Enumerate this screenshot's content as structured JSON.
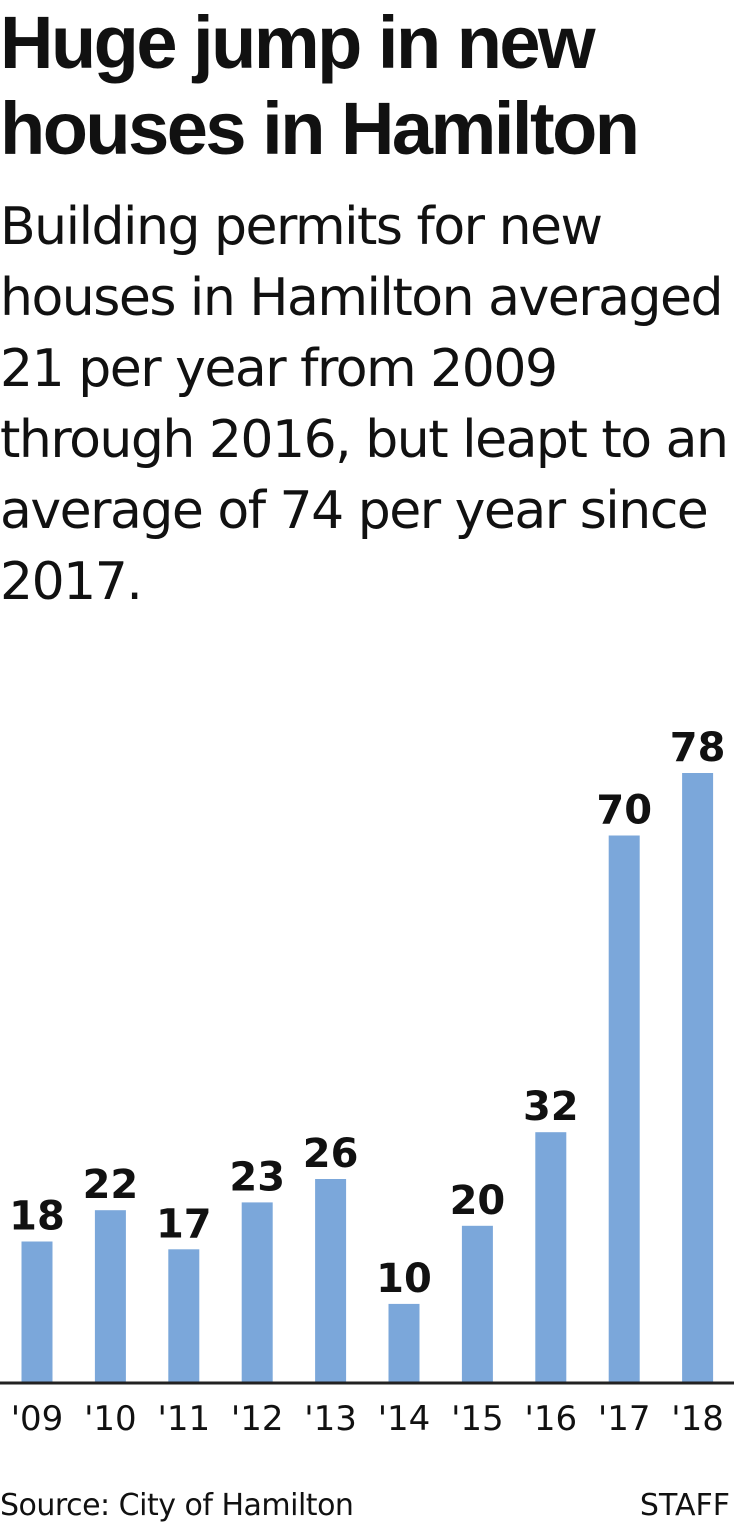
{
  "headline": "Huge jump in new houses in Hamilton",
  "description": "Building permits for new houses in Hamilton averaged 21 per year from 2009 through 2016, but leapt to an average of 74 per year since 2017.",
  "source": "Source: City of Hamilton",
  "credit": "STAFF",
  "colors": {
    "bar": "#7ba7da",
    "baseline": "#222222",
    "text": "#111111"
  },
  "chart_data": {
    "type": "bar",
    "title": "Huge jump in new houses in Hamilton",
    "subtitle": "Building permits for new houses in Hamilton averaged 21 per year from 2009 through 2016, but leapt to an average of 74 per year since 2017.",
    "categories": [
      "'09",
      "'10",
      "'11",
      "'12",
      "'13",
      "'14",
      "'15",
      "'16",
      "'17",
      "'18"
    ],
    "values": [
      18,
      22,
      17,
      23,
      26,
      10,
      20,
      32,
      70,
      78
    ],
    "data_labels": [
      "18",
      "22",
      "17",
      "23",
      "26",
      "10",
      "20",
      "32",
      "70",
      "78"
    ],
    "ylim": [
      0,
      78
    ],
    "grid": false,
    "legend": "none"
  }
}
